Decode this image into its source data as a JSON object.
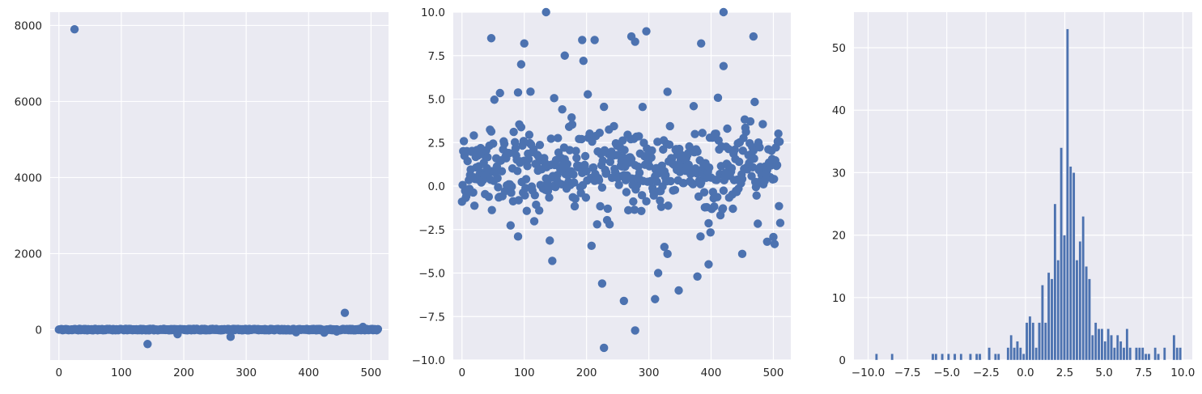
{
  "colors": {
    "background": "#ffffff",
    "plot_background": "#eaeaf2",
    "grid": "#ffffff",
    "marker": "#4c72b0",
    "text": "#262626"
  },
  "chart_data": [
    {
      "type": "scatter",
      "xlim": [
        -14,
        528
      ],
      "ylim": [
        -800,
        8350
      ],
      "xticks": [
        0,
        100,
        200,
        300,
        400,
        500
      ],
      "xtick_labels": [
        "0",
        "100",
        "200",
        "300",
        "400",
        "500"
      ],
      "yticks": [
        0,
        2000,
        4000,
        6000,
        8000
      ],
      "ytick_labels": [
        "0",
        "2000",
        "4000",
        "6000",
        "8000"
      ],
      "grid": true,
      "notable_points": [
        {
          "x": 25,
          "y": 7900
        },
        {
          "x": 142,
          "y": -380
        },
        {
          "x": 190,
          "y": -120
        },
        {
          "x": 275,
          "y": -190
        },
        {
          "x": 380,
          "y": -70
        },
        {
          "x": 425,
          "y": -80
        },
        {
          "x": 445,
          "y": -50
        },
        {
          "x": 458,
          "y": 440
        },
        {
          "x": 487,
          "y": 70
        }
      ]
    },
    {
      "type": "scatter",
      "xlim": [
        -14,
        528
      ],
      "ylim": [
        -10,
        10
      ],
      "xticks": [
        0,
        100,
        200,
        300,
        400,
        500
      ],
      "xtick_labels": [
        "0",
        "100",
        "200",
        "300",
        "400",
        "500"
      ],
      "yticks": [
        -10,
        -7.5,
        -5,
        -2.5,
        0,
        2.5,
        5,
        7.5,
        10
      ],
      "ytick_labels": [
        "−10.0",
        "−7.5",
        "−5.0",
        "−2.5",
        "0.0",
        "2.5",
        "5.0",
        "7.5",
        "10.0"
      ],
      "grid": true,
      "outliers": [
        {
          "x": 47,
          "y": 8.5
        },
        {
          "x": 95,
          "y": 7.0
        },
        {
          "x": 100,
          "y": 8.2
        },
        {
          "x": 135,
          "y": 10.0
        },
        {
          "x": 165,
          "y": 7.5
        },
        {
          "x": 193,
          "y": 8.4
        },
        {
          "x": 195,
          "y": 7.2
        },
        {
          "x": 213,
          "y": 8.4
        },
        {
          "x": 272,
          "y": 8.6
        },
        {
          "x": 278,
          "y": 8.3
        },
        {
          "x": 296,
          "y": 8.9
        },
        {
          "x": 384,
          "y": 8.2
        },
        {
          "x": 420,
          "y": 10.0
        },
        {
          "x": 420,
          "y": 6.9
        },
        {
          "x": 468,
          "y": 8.6
        },
        {
          "x": 90,
          "y": -2.9
        },
        {
          "x": 145,
          "y": -4.3
        },
        {
          "x": 225,
          "y": -5.6
        },
        {
          "x": 228,
          "y": -9.3
        },
        {
          "x": 260,
          "y": -6.6
        },
        {
          "x": 278,
          "y": -8.3
        },
        {
          "x": 310,
          "y": -6.5
        },
        {
          "x": 315,
          "y": -5.0
        },
        {
          "x": 325,
          "y": -3.5
        },
        {
          "x": 330,
          "y": -3.9
        },
        {
          "x": 348,
          "y": -6.0
        },
        {
          "x": 378,
          "y": -5.2
        },
        {
          "x": 383,
          "y": -2.9
        },
        {
          "x": 396,
          "y": -4.5
        },
        {
          "x": 450,
          "y": -3.9
        },
        {
          "x": 490,
          "y": -3.2
        }
      ]
    },
    {
      "type": "bar",
      "subtype": "histogram",
      "xlim": [
        -10.9,
        10.6
      ],
      "ylim": [
        0,
        55.7
      ],
      "xticks": [
        -10,
        -7.5,
        -5,
        -2.5,
        0,
        2.5,
        5,
        7.5,
        10
      ],
      "xtick_labels": [
        "−10.0",
        "−7.5",
        "−5.0",
        "−2.5",
        "0.0",
        "2.5",
        "5.0",
        "7.5",
        "10.0"
      ],
      "yticks": [
        0,
        10,
        20,
        30,
        40,
        50
      ],
      "ytick_labels": [
        "0",
        "10",
        "20",
        "30",
        "40",
        "50"
      ],
      "grid": true,
      "bin_range": [
        -9.95,
        9.95
      ],
      "bins": 100,
      "values": [
        0,
        0,
        1,
        0,
        0,
        0,
        0,
        1,
        0,
        0,
        0,
        0,
        0,
        0,
        0,
        0,
        0,
        0,
        0,
        0,
        1,
        1,
        0,
        1,
        0,
        1,
        0,
        1,
        0,
        1,
        0,
        0,
        1,
        0,
        1,
        1,
        0,
        0,
        2,
        0,
        1,
        1,
        0,
        0,
        2,
        4,
        2,
        3,
        2,
        1,
        6,
        7,
        6,
        2,
        6,
        12,
        6,
        14,
        13,
        25,
        16,
        34,
        20,
        53,
        31,
        30,
        16,
        19,
        23,
        15,
        13,
        4,
        6,
        5,
        5,
        3,
        5,
        4,
        2,
        4,
        3,
        2,
        5,
        2,
        0,
        2,
        2,
        2,
        1,
        1,
        0,
        2,
        1,
        0,
        2,
        0,
        0,
        4,
        2,
        2
      ]
    }
  ]
}
